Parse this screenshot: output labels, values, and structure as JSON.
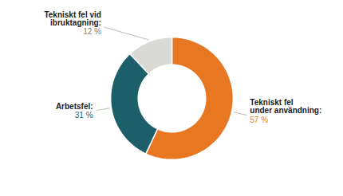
{
  "chart_data": {
    "type": "pie",
    "categories": [
      "Tekniskt fel\nunder användning:",
      "Arbetsfel:",
      "Tekniskt fel vid\nibruktagning:"
    ],
    "values": [
      57,
      31,
      12
    ],
    "value_labels": [
      "57 %",
      "31 %",
      "12 %"
    ],
    "colors": [
      "#E87722",
      "#1C5F6B",
      "#D9D9D6"
    ],
    "data_labels": true
  }
}
